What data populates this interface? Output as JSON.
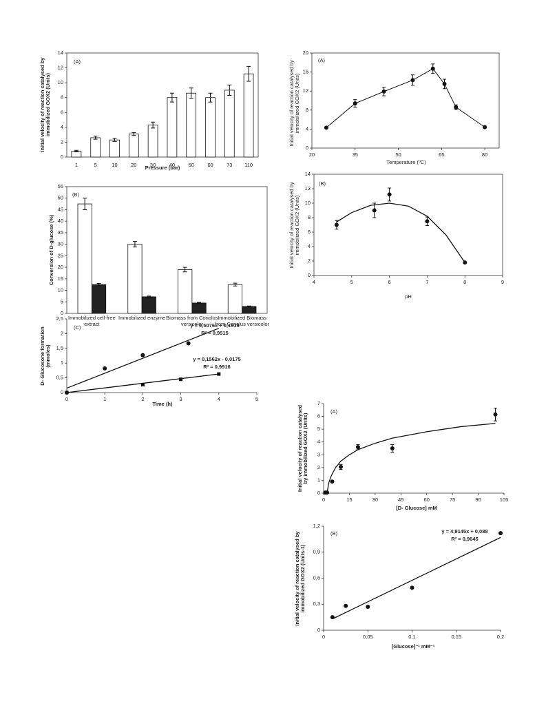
{
  "chart_data": [
    {
      "type": "bar",
      "panel": "(A)",
      "xlabel": "Pressure (bar)",
      "ylabel": [
        "Initial velocity of reaction catalysed by",
        "immobilized GOX2 (Units)"
      ],
      "categories": [
        "1",
        "5",
        "10",
        "20",
        "30",
        "40",
        "50",
        "60",
        "73",
        "110"
      ],
      "series": [
        {
          "color": "#ffffff",
          "values": [
            0.8,
            2.6,
            2.3,
            3.1,
            4.3,
            8.0,
            8.6,
            8.0,
            9.0,
            11.2
          ],
          "errors": [
            0.1,
            0.2,
            0.2,
            0.2,
            0.4,
            0.6,
            0.7,
            0.6,
            0.7,
            1.0
          ]
        }
      ],
      "ylim": [
        0,
        14
      ],
      "yticks": [
        0,
        2,
        4,
        6,
        8,
        10,
        12,
        14
      ]
    },
    {
      "type": "bar",
      "panel": "(B)",
      "ylabel": [
        "Conversion of D-glucose (%)"
      ],
      "categories": [
        [
          "Immobilized cell-free",
          "extract"
        ],
        [
          "Immobilized enzyme"
        ],
        [
          "Biomass from Coriolus",
          "versicolor"
        ],
        [
          "Immobilized Biomass",
          "from Coriolus versicolor"
        ]
      ],
      "series": [
        {
          "color": "#ffffff",
          "values": [
            47.5,
            30,
            19,
            12.5
          ],
          "errors": [
            2.5,
            1.2,
            1,
            0.6
          ]
        },
        {
          "color": "#222222",
          "values": [
            12.5,
            7.2,
            4.5,
            3.0
          ],
          "errors": [
            0.5,
            0.3,
            0.3,
            0.2
          ]
        }
      ],
      "ylim": [
        0,
        55
      ],
      "yticks": [
        0,
        5,
        10,
        15,
        20,
        25,
        30,
        35,
        40,
        45,
        50,
        55
      ]
    },
    {
      "type": "scatter",
      "panel": "(C)",
      "xlabel": "Time (h)",
      "ylabel": [
        "D- Glucosone formation",
        "(mmoles)"
      ],
      "annotations": [
        "y = 0,5076x + 0,1515",
        "R² = 0,9515",
        "y = 0,1562x - 0,0175",
        "R² = 0,9916"
      ],
      "series": [
        {
          "marker": "circle",
          "x": [
            0,
            1,
            2,
            3.2
          ],
          "values": [
            0,
            0.82,
            1.27,
            1.67
          ]
        },
        {
          "marker": "square",
          "x": [
            0,
            2,
            3,
            4
          ],
          "values": [
            0,
            0.27,
            0.45,
            0.63
          ]
        }
      ],
      "fits": [
        {
          "x": [
            0,
            4
          ],
          "values": [
            0.15,
            2.18
          ]
        },
        {
          "x": [
            0,
            4
          ],
          "values": [
            0,
            0.63
          ]
        }
      ],
      "xlim": [
        0,
        5
      ],
      "xticks": [
        0,
        1,
        2,
        3,
        4,
        5
      ],
      "ylim": [
        0,
        2.5
      ],
      "yticks": [
        0,
        {
          "value": 0.5,
          "label": "0,5"
        },
        1,
        {
          "value": 1.5,
          "label": "1,5"
        },
        2,
        {
          "value": 2.5,
          "label": "2,5"
        }
      ]
    },
    {
      "type": "line",
      "panel": "(A)",
      "xlabel": "Temperature (ºC)",
      "ylabel": [
        "Initial velocity of reaction catalysed by",
        "immobilized GOX2 (Units)"
      ],
      "series": [
        {
          "marker": "circle",
          "x": [
            25,
            35,
            45,
            55,
            62,
            66,
            70,
            80
          ],
          "values": [
            4.3,
            9.4,
            11.9,
            14.3,
            16.7,
            13.5,
            8.6,
            4.4
          ],
          "errors": [
            0.2,
            0.8,
            0.9,
            1.1,
            1.0,
            1.0,
            0.5,
            0.2
          ]
        }
      ],
      "xlim": [
        20,
        85
      ],
      "xticks": [
        20,
        35,
        50,
        65,
        80
      ],
      "ylim": [
        0,
        20
      ],
      "yticks": [
        0,
        4,
        8,
        12,
        16,
        20
      ]
    },
    {
      "type": "scatter",
      "panel": "(B)",
      "xlabel": "pH",
      "ylabel": [
        "Initial velocity of reaction catalysed by",
        "immobilized GOX2 (Units)"
      ],
      "series": [
        {
          "marker": "circle",
          "x": [
            4.6,
            5.6,
            6,
            7,
            8
          ],
          "values": [
            7,
            9,
            11.2,
            7.5,
            1.8
          ],
          "errors": [
            0.6,
            1.0,
            0.9,
            0.6,
            0.1
          ]
        }
      ],
      "fits": [
        {
          "x": [
            4.6,
            5,
            5.5,
            6,
            6.5,
            7,
            7.5,
            8
          ],
          "values": [
            7.4,
            8.7,
            9.7,
            10.0,
            9.6,
            8.2,
            5.6,
            1.8
          ]
        }
      ],
      "xlim": [
        4,
        9
      ],
      "xticks": [
        4,
        5,
        6,
        7,
        8,
        9
      ],
      "ylim": [
        0,
        14
      ],
      "yticks": [
        0,
        2,
        4,
        6,
        8,
        10,
        12,
        14
      ]
    },
    {
      "type": "scatter",
      "panel": "(A)",
      "xlabel": "[D- Glucose] mM",
      "ylabel": [
        "Initial velocity of reaction catalysed",
        "by immobilized GOX2 (Units)"
      ],
      "series": [
        {
          "marker": "circle",
          "x": [
            1,
            2,
            5,
            10,
            20,
            40,
            100
          ],
          "values": [
            0.05,
            0.05,
            0.9,
            2.05,
            3.6,
            3.5,
            6.15
          ],
          "errors": [
            0,
            0,
            0,
            0.2,
            0.2,
            0.3,
            0.5
          ]
        }
      ],
      "fits": [
        {
          "x": [
            2,
            2.5,
            3,
            4,
            5,
            7,
            10,
            15,
            20,
            30,
            40,
            60,
            80,
            100
          ],
          "values": [
            0,
            0.4,
            0.8,
            1.2,
            1.5,
            2.0,
            2.5,
            3.0,
            3.4,
            3.9,
            4.3,
            4.8,
            5.2,
            5.45
          ]
        }
      ],
      "xlim": [
        0,
        105
      ],
      "xticks": [
        0,
        15,
        30,
        45,
        60,
        75,
        90,
        105
      ],
      "ylim": [
        0,
        7
      ],
      "yticks": [
        0,
        1,
        2,
        3,
        4,
        5,
        6,
        7
      ]
    },
    {
      "type": "scatter",
      "panel": "(B)",
      "xlabel": "[Glucose]⁻¹ mM⁻¹",
      "ylabel": [
        "Initial velocity of reaction catalysed by",
        "immobilized GOX2 (Units-1)"
      ],
      "annotations": [
        "y = 4,9145x + 0,088",
        "R² = 0,9645"
      ],
      "series": [
        {
          "marker": "circle",
          "x": [
            0.01,
            0.025,
            0.05,
            0.1,
            0.2
          ],
          "values": [
            0.15,
            0.28,
            0.27,
            0.49,
            1.12
          ]
        }
      ],
      "fits": [
        {
          "x": [
            0.01,
            0.2
          ],
          "values": [
            0.13,
            1.07
          ]
        }
      ],
      "xlim": [
        0,
        0.2
      ],
      "xticks": [
        0,
        {
          "value": 0.05,
          "label": "0,05"
        },
        {
          "value": 0.1,
          "label": "0,1"
        },
        {
          "value": 0.15,
          "label": "0,15"
        },
        {
          "value": 0.2,
          "label": "0,2"
        }
      ],
      "ylim": [
        0,
        1.2
      ],
      "yticks": [
        0,
        {
          "value": 0.3,
          "label": "0,3"
        },
        {
          "value": 0.6,
          "label": "0,6"
        },
        {
          "value": 0.9,
          "label": "0,9"
        },
        {
          "value": 1.2,
          "label": "1,2"
        }
      ]
    }
  ]
}
